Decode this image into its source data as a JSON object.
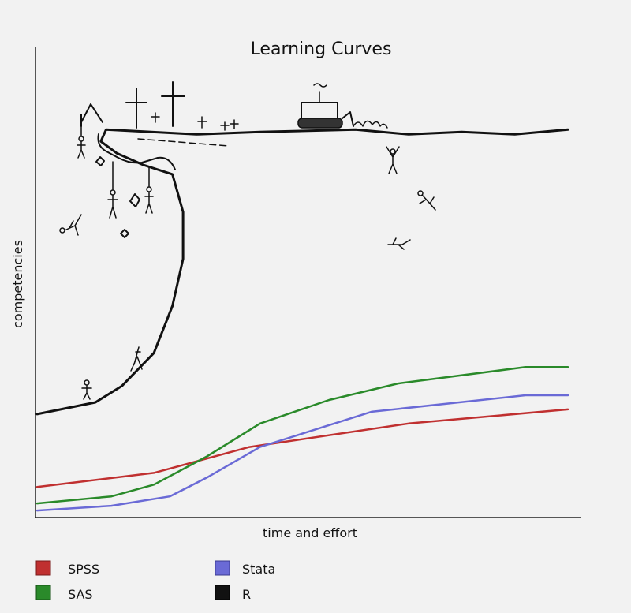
{
  "chart_data": {
    "type": "line",
    "title": "Learning Curves",
    "xlabel": "time and effort",
    "ylabel": "competencies",
    "xlim": [
      0,
      10
    ],
    "ylim": [
      0,
      10
    ],
    "grid": false,
    "legend_position": "bottom",
    "series": [
      {
        "name": "SPSS",
        "color": "#c03030",
        "x": [
          0,
          2.2,
          4,
          7,
          10
        ],
        "y": [
          0.65,
          0.95,
          1.5,
          2.0,
          2.3
        ]
      },
      {
        "name": "SAS",
        "color": "#2a8a2a",
        "x": [
          0,
          1.4,
          2.2,
          3.2,
          4.2,
          5.5,
          6.8,
          9.2,
          10
        ],
        "y": [
          0.3,
          0.45,
          0.7,
          1.3,
          2.0,
          2.5,
          2.85,
          3.2,
          3.2
        ]
      },
      {
        "name": "Stata",
        "color": "#6a6ad6",
        "x": [
          0,
          1.4,
          2.5,
          3.2,
          4.2,
          6.3,
          9.2,
          10
        ],
        "y": [
          0.15,
          0.25,
          0.45,
          0.85,
          1.5,
          2.25,
          2.6,
          2.6
        ]
      },
      {
        "name": "R",
        "color": "#111111",
        "x": [
          0,
          1.1,
          1.6,
          2.2,
          2.55,
          2.75,
          2.75,
          2.55,
          2.0,
          1.5,
          1.2,
          1.3,
          3.0,
          4.2,
          6.0,
          7.0,
          8.0,
          9.0,
          10
        ],
        "y": [
          2.2,
          2.45,
          2.8,
          3.5,
          4.5,
          5.5,
          6.5,
          7.3,
          7.5,
          7.75,
          8.0,
          8.25,
          8.15,
          8.2,
          8.25,
          8.15,
          8.2,
          8.15,
          8.25
        ]
      }
    ],
    "legend": [
      {
        "name": "SPSS",
        "color": "#c03030"
      },
      {
        "name": "Stata",
        "color": "#6a6ad6"
      },
      {
        "name": "SAS",
        "color": "#2a8a2a"
      },
      {
        "name": "R",
        "color": "#111111"
      }
    ]
  }
}
